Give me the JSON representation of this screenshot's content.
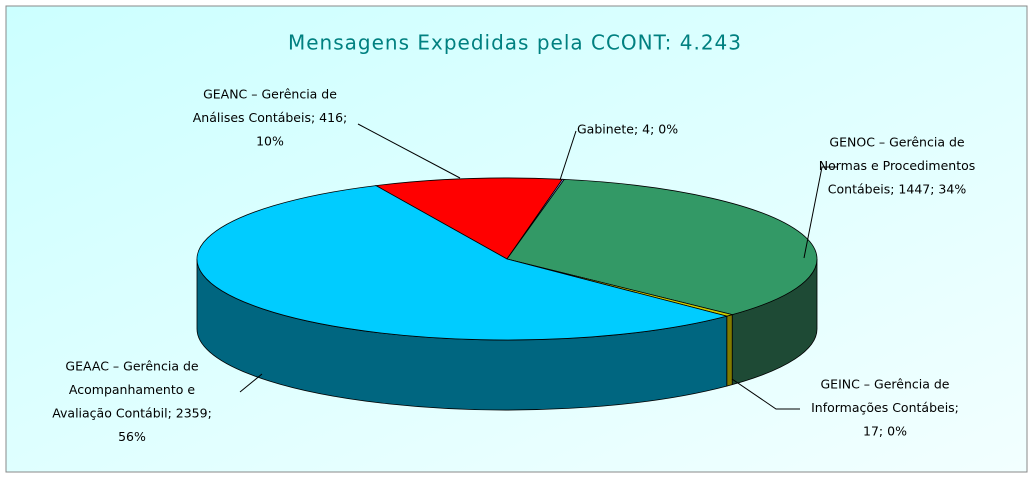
{
  "chart_data": {
    "type": "pie",
    "title": "Mensagens Expedidas pela CCONT: 4.243",
    "values": [
      416,
      4,
      1447,
      17,
      2359
    ],
    "value_labels": [
      [
        "GEANC – Gerência de",
        "Análises Contábeis; 416;",
        "10%"
      ],
      [
        "Gabinete; 4; 0%"
      ],
      [
        "GENOC – Gerência de",
        "Normas e Procedimentos",
        "Contábeis; 1447; 34%"
      ],
      [
        "GEINC – Gerência de",
        "Informações Contábeis;",
        "17; 0%"
      ],
      [
        "GEAAC – Gerência de",
        "Acompanhamento e",
        "Avaliação Contábil; 2359;",
        "56%"
      ]
    ],
    "colors": [
      "#ff0000",
      "#9999ff",
      "#339966",
      "#cccc00",
      "#00ccff"
    ],
    "side_colors": [
      "#990000",
      "#5c5c99",
      "#1e4a35",
      "#807a00",
      "#006680"
    ]
  }
}
